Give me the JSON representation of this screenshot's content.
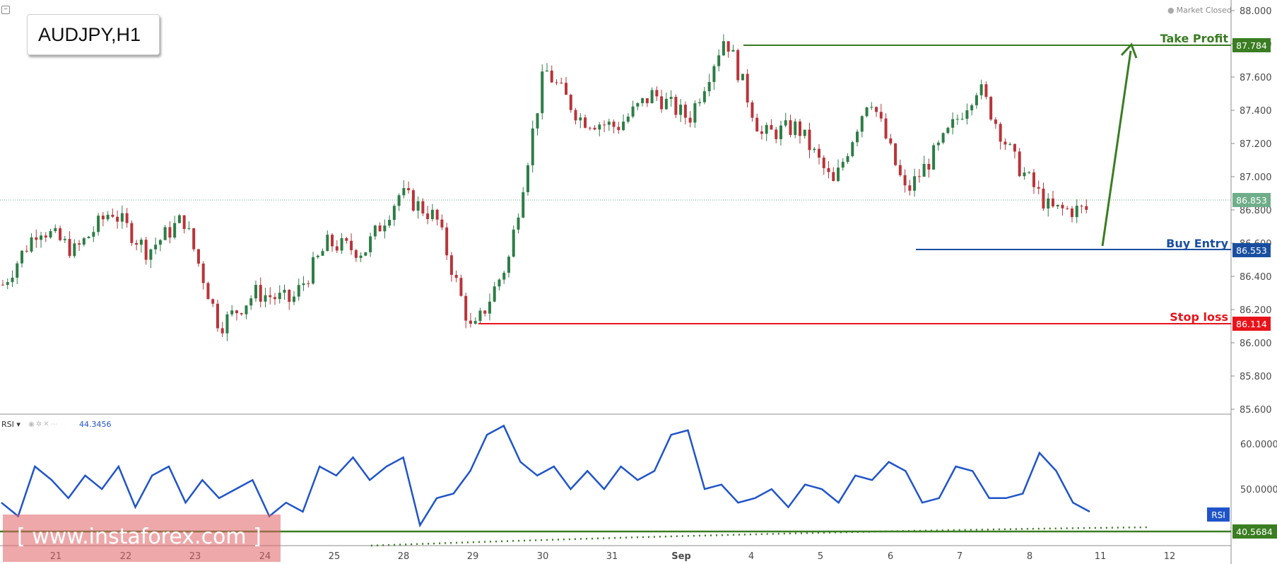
{
  "symbol": {
    "label": "AUDJPY,H1"
  },
  "status": {
    "market": "Market Closed"
  },
  "watermark": {
    "text": "[ www.instaforex.com ]"
  },
  "colors": {
    "bull_candle": "#2e7d46",
    "bear_candle": "#b8343a",
    "take_profit": "#3a7d22",
    "buy_entry": "#1a4fa0",
    "stop_loss": "#e8141b",
    "rsi_line": "#1f54c9",
    "current_price": "#6fae8a"
  },
  "chart_data": [
    {
      "type": "line",
      "title": "AUDJPY,H1",
      "description": "Hourly candlestick price chart",
      "x_labels": [
        "21",
        "22",
        "23",
        "24",
        "25",
        "28",
        "29",
        "30",
        "31",
        "Sep",
        "4",
        "5",
        "6",
        "7",
        "8",
        "11",
        "12"
      ],
      "y_ticks": [
        "88.000",
        "87.800",
        "87.600",
        "87.400",
        "87.200",
        "87.000",
        "86.800",
        "86.600",
        "86.400",
        "86.200",
        "86.000",
        "85.800",
        "85.600"
      ],
      "ylim": [
        85.55,
        88.05
      ],
      "series": [
        {
          "values_x_day_index": [
            0,
            0.5,
            1,
            1.5,
            2,
            2.5,
            3,
            3.5,
            4,
            4.5,
            5,
            5.5,
            6,
            6.5,
            7,
            7.5,
            8,
            8.5,
            9,
            9.5,
            10,
            10.5,
            11,
            11.5,
            12,
            12.5,
            13,
            13.5,
            14,
            14.5,
            15
          ],
          "values_close": [
            86.35,
            86.7,
            86.55,
            86.8,
            86.55,
            86.75,
            86.1,
            86.3,
            86.25,
            86.6,
            86.55,
            86.9,
            86.75,
            86.05,
            86.5,
            87.65,
            87.35,
            87.3,
            87.5,
            87.35,
            87.85,
            87.25,
            87.3,
            86.95,
            87.5,
            86.9,
            87.2,
            87.55,
            87.1,
            86.8,
            86.8
          ]
        }
      ],
      "levels": [
        {
          "label": "Take Profit",
          "value": "87.784"
        },
        {
          "label": "Buy Entry",
          "value": "86.553"
        },
        {
          "label": "Stop loss",
          "value": "86.114"
        }
      ],
      "current_price": "86.853"
    },
    {
      "type": "line",
      "title": "RSI",
      "current_value": "44.3456",
      "y_ticks": [
        "60.0000",
        "50.0000"
      ],
      "support_level": "40.5684",
      "series": [
        {
          "name": "RSI",
          "values": [
            47,
            44,
            55,
            52,
            48,
            53,
            50,
            55,
            46,
            53,
            55,
            47,
            52,
            48,
            50,
            52,
            44,
            47,
            45,
            55,
            53,
            57,
            52,
            55,
            57,
            42,
            48,
            49,
            54,
            62,
            64,
            56,
            53,
            55,
            50,
            54,
            50,
            55,
            52,
            54,
            62,
            63,
            50,
            51,
            47,
            48,
            50,
            46,
            51,
            50,
            47,
            53,
            52,
            56,
            54,
            47,
            48,
            55,
            54,
            48,
            48,
            49,
            58,
            54,
            47,
            45
          ]
        }
      ]
    }
  ]
}
